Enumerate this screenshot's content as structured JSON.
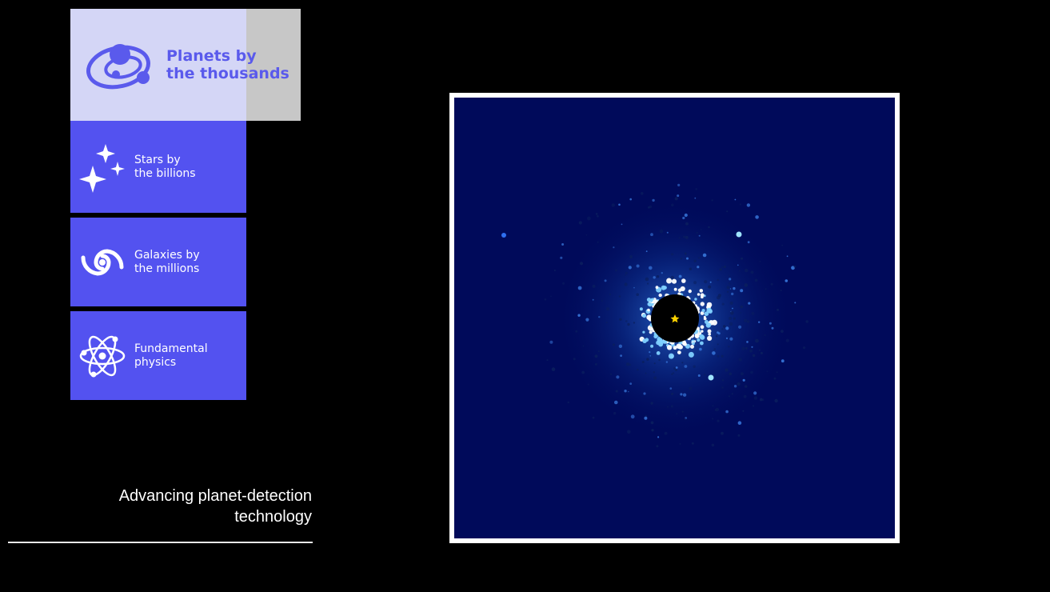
{
  "sidebar": {
    "items": [
      {
        "label": "Planets by\nthe thousands",
        "icon": "planet-orbit-icon",
        "active": true
      },
      {
        "label": "Stars by\nthe billions",
        "icon": "sparkle-stars-icon",
        "active": false
      },
      {
        "label": "Galaxies by\nthe millions",
        "icon": "spiral-galaxy-icon",
        "active": false
      },
      {
        "label": "Fundamental\nphysics",
        "icon": "atom-icon",
        "active": false
      }
    ]
  },
  "caption": "Advancing planet-detection\ntechnology",
  "colors": {
    "tile_blue": "#5352f0",
    "active_tile": "#d4d6f6",
    "active_text": "#5a5aec",
    "image_background": "#000a5a",
    "star_marker": "#ffd400"
  }
}
